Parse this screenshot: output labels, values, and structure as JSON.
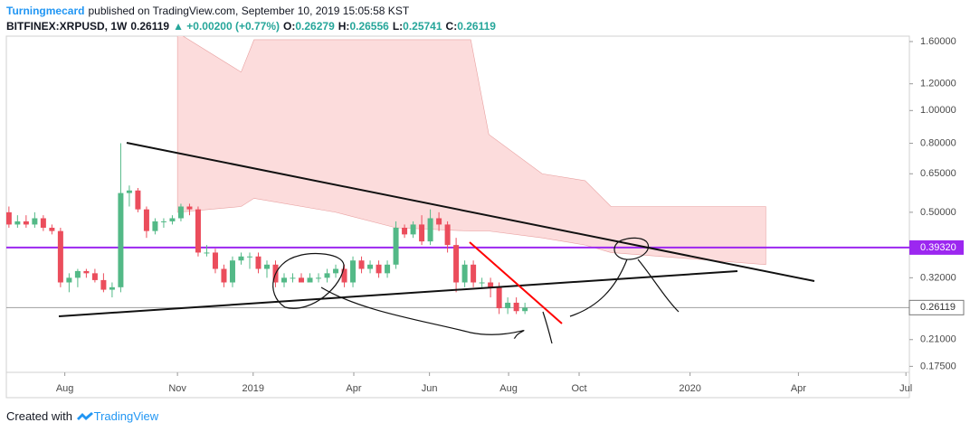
{
  "header": {
    "author": "Turningmecard",
    "published": "published on TradingView.com, September 10, 2019 15:05:58 KST",
    "symbol": "BITFINEX:XRPUSD, 1W",
    "last": "0.26119",
    "change": "▲ +0.00200 (+0.77%)",
    "ohlc": [
      {
        "label": "O:",
        "value": "0.26279"
      },
      {
        "label": "H:",
        "value": "0.26556"
      },
      {
        "label": "L:",
        "value": "0.25741"
      },
      {
        "label": "C:",
        "value": "0.26119"
      }
    ]
  },
  "footer": {
    "text": "Created with",
    "brand": "TradingView"
  },
  "chart_data": {
    "type": "candlestick",
    "log_scale": true,
    "grid": false,
    "up_color": "#53b987",
    "down_color": "#eb4d5c",
    "x": [
      0,
      1,
      2,
      3,
      4,
      5,
      6,
      7,
      8,
      9,
      10,
      11,
      12,
      13,
      14,
      15,
      16,
      17,
      18,
      19,
      20,
      21,
      22,
      23,
      24,
      25,
      26,
      27,
      28,
      29,
      30,
      31,
      32,
      33,
      34,
      35,
      36,
      37,
      38,
      39,
      40,
      41,
      42,
      43,
      44,
      45,
      46,
      47,
      48,
      49,
      50,
      51,
      52,
      53,
      54,
      55,
      56,
      57,
      58,
      59,
      60
    ],
    "open": [
      0.5,
      0.46,
      0.47,
      0.46,
      0.48,
      0.45,
      0.44,
      0.31,
      0.32,
      0.335,
      0.33,
      0.315,
      0.295,
      0.3,
      0.57,
      0.58,
      0.51,
      0.44,
      0.47,
      0.47,
      0.48,
      0.52,
      0.51,
      0.38,
      0.38,
      0.34,
      0.31,
      0.36,
      0.37,
      0.37,
      0.34,
      0.35,
      0.31,
      0.32,
      0.32,
      0.31,
      0.32,
      0.32,
      0.33,
      0.34,
      0.31,
      0.36,
      0.34,
      0.35,
      0.33,
      0.35,
      0.45,
      0.43,
      0.46,
      0.41,
      0.48,
      0.46,
      0.4,
      0.31,
      0.35,
      0.31,
      0.31,
      0.3,
      0.26,
      0.27,
      0.255
    ],
    "high": [
      0.52,
      0.49,
      0.49,
      0.5,
      0.49,
      0.46,
      0.45,
      0.33,
      0.34,
      0.34,
      0.34,
      0.33,
      0.31,
      0.8,
      0.6,
      0.59,
      0.52,
      0.48,
      0.48,
      0.49,
      0.53,
      0.53,
      0.52,
      0.4,
      0.39,
      0.35,
      0.37,
      0.38,
      0.38,
      0.38,
      0.36,
      0.36,
      0.33,
      0.33,
      0.33,
      0.33,
      0.33,
      0.34,
      0.35,
      0.35,
      0.37,
      0.37,
      0.36,
      0.36,
      0.36,
      0.47,
      0.46,
      0.47,
      0.49,
      0.51,
      0.5,
      0.47,
      0.42,
      0.36,
      0.36,
      0.32,
      0.32,
      0.31,
      0.28,
      0.28,
      0.27
    ],
    "low": [
      0.45,
      0.45,
      0.45,
      0.45,
      0.44,
      0.43,
      0.3,
      0.29,
      0.3,
      0.32,
      0.31,
      0.29,
      0.28,
      0.29,
      0.52,
      0.5,
      0.42,
      0.43,
      0.45,
      0.46,
      0.47,
      0.49,
      0.37,
      0.37,
      0.33,
      0.3,
      0.3,
      0.35,
      0.34,
      0.33,
      0.32,
      0.3,
      0.3,
      0.31,
      0.31,
      0.31,
      0.31,
      0.31,
      0.32,
      0.3,
      0.3,
      0.33,
      0.33,
      0.32,
      0.32,
      0.34,
      0.42,
      0.42,
      0.4,
      0.4,
      0.44,
      0.38,
      0.29,
      0.3,
      0.3,
      0.3,
      0.28,
      0.25,
      0.25,
      0.25,
      0.25
    ],
    "close": [
      0.46,
      0.47,
      0.46,
      0.48,
      0.45,
      0.44,
      0.31,
      0.32,
      0.335,
      0.33,
      0.315,
      0.295,
      0.3,
      0.57,
      0.58,
      0.51,
      0.44,
      0.47,
      0.47,
      0.48,
      0.52,
      0.51,
      0.38,
      0.38,
      0.34,
      0.31,
      0.36,
      0.37,
      0.37,
      0.34,
      0.35,
      0.31,
      0.32,
      0.32,
      0.31,
      0.32,
      0.32,
      0.33,
      0.34,
      0.31,
      0.36,
      0.34,
      0.35,
      0.33,
      0.35,
      0.45,
      0.43,
      0.46,
      0.41,
      0.48,
      0.46,
      0.4,
      0.31,
      0.35,
      0.31,
      0.31,
      0.3,
      0.26,
      0.27,
      0.255,
      0.261
    ],
    "cloud": {
      "color": "#fcdcdc",
      "x": [
        19.6,
        27,
        28.5,
        38,
        45,
        53.7,
        55.8,
        62,
        67,
        70,
        88
      ],
      "upper": [
        1.7,
        1.3,
        1.62,
        1.62,
        1.62,
        1.62,
        0.85,
        0.65,
        0.62,
        0.52,
        0.52
      ],
      "lower": [
        0.5,
        0.52,
        0.55,
        0.5,
        0.45,
        0.44,
        0.44,
        0.42,
        0.4,
        0.38,
        0.35
      ]
    },
    "price_lines": [
      {
        "value": 0.3932,
        "label": "0.39320",
        "color": "#9c27f0"
      },
      {
        "value": 0.26119,
        "label": "0.26119",
        "color": "#9e9e9e"
      }
    ],
    "ylim": [
      0.168,
      1.66
    ],
    "yticks": [
      {
        "value": 1.6,
        "label": "1.60000"
      },
      {
        "value": 1.2,
        "label": "1.20000"
      },
      {
        "value": 1.0,
        "label": "1.00000"
      },
      {
        "value": 0.8,
        "label": "0.80000"
      },
      {
        "value": 0.65,
        "label": "0.65000"
      },
      {
        "value": 0.5,
        "label": "0.50000"
      },
      {
        "value": 0.32,
        "label": "0.32000"
      },
      {
        "value": 0.21,
        "label": "0.21000"
      },
      {
        "value": 0.175,
        "label": "0.17500"
      }
    ],
    "xlim": [
      -0.3,
      104.7
    ],
    "xticks": [
      {
        "value": 6.5,
        "label": "Aug"
      },
      {
        "value": 19.6,
        "label": "Nov"
      },
      {
        "value": 28.4,
        "label": "2019"
      },
      {
        "value": 40.1,
        "label": "Apr"
      },
      {
        "value": 48.9,
        "label": "Jun"
      },
      {
        "value": 58.1,
        "label": "Aug"
      },
      {
        "value": 66.3,
        "label": "Oct"
      },
      {
        "value": 79.2,
        "label": "2020"
      },
      {
        "value": 91.8,
        "label": "Apr"
      },
      {
        "value": 104.3,
        "label": "Jul"
      }
    ]
  }
}
